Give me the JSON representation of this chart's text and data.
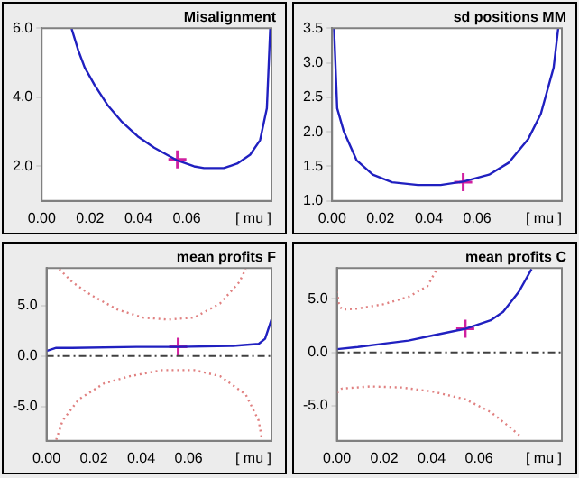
{
  "chart_data": [
    {
      "type": "line",
      "title": "Misalignment",
      "xlabel": "[ mu ]",
      "xlim": [
        0,
        0.095
      ],
      "xticks": [
        {
          "value": 0,
          "label": "0.00"
        },
        {
          "value": 0.02,
          "label": "0.02"
        },
        {
          "value": 0.04,
          "label": "0.04"
        },
        {
          "value": 0.06,
          "label": "0.06"
        }
      ],
      "ylim": [
        1,
        6
      ],
      "yticks": [
        {
          "value": 2,
          "label": "2.0"
        },
        {
          "value": 4,
          "label": "4.0"
        },
        {
          "value": 6,
          "label": "6.0"
        }
      ],
      "series": [
        {
          "color": "#2020c0",
          "x": [
            0.0123,
            0.0151,
            0.0178,
            0.0219,
            0.0274,
            0.0329,
            0.0397,
            0.0465,
            0.0561,
            0.063,
            0.0671,
            0.0753,
            0.0808,
            0.0862,
            0.0903,
            0.0931,
            0.0945
          ],
          "values": [
            6.0,
            5.36,
            4.86,
            4.35,
            3.76,
            3.31,
            2.87,
            2.54,
            2.17,
            2.0,
            1.95,
            1.95,
            2.08,
            2.34,
            2.76,
            3.68,
            6.0
          ]
        },
        {
          "type": "scatter",
          "marker": "cross",
          "color": "#d020a0",
          "x": [
            0.0561
          ],
          "values": [
            2.2
          ]
        }
      ]
    },
    {
      "type": "line",
      "title": "sd positions MM",
      "xlabel": "[ mu ]",
      "xlim": [
        0,
        0.095
      ],
      "xticks": [
        {
          "value": 0,
          "label": "0.00"
        },
        {
          "value": 0.02,
          "label": "0.02"
        },
        {
          "value": 0.04,
          "label": "0.04"
        },
        {
          "value": 0.06,
          "label": "0.06"
        }
      ],
      "ylim": [
        1,
        3.5
      ],
      "yticks": [
        {
          "value": 1,
          "label": "1.0"
        },
        1.5,
        {
          "value": 2,
          "label": "2.0"
        },
        2.5,
        {
          "value": 3,
          "label": "3.0"
        },
        3.5
      ],
      "series": [
        {
          "color": "#2020c0",
          "x": [
            0.0008,
            0.0021,
            0.0048,
            0.0101,
            0.0168,
            0.0248,
            0.0355,
            0.0449,
            0.0542,
            0.0649,
            0.0729,
            0.081,
            0.0863,
            0.0916,
            0.0935
          ],
          "values": [
            3.5,
            2.34,
            2.01,
            1.59,
            1.38,
            1.27,
            1.23,
            1.23,
            1.28,
            1.38,
            1.55,
            1.89,
            2.26,
            2.93,
            3.5
          ]
        },
        {
          "type": "scatter",
          "marker": "cross",
          "color": "#d020a0",
          "x": [
            0.0542
          ],
          "values": [
            1.27
          ]
        }
      ]
    },
    {
      "type": "line",
      "title": "mean profits F",
      "xlabel": "[ mu ]",
      "xlim": [
        0,
        0.095
      ],
      "xticks": [
        {
          "value": 0,
          "label": "0.00"
        },
        {
          "value": 0.02,
          "label": "0.02"
        },
        {
          "value": 0.04,
          "label": "0.04"
        },
        {
          "value": 0.06,
          "label": "0.06"
        }
      ],
      "ylim": [
        -8.4,
        8.7
      ],
      "yticks": [
        {
          "value": -5,
          "label": "-5.0"
        },
        {
          "value": 0,
          "label": "0.0"
        },
        {
          "value": 5,
          "label": "5.0"
        }
      ],
      "ref_lines": [
        {
          "axis": "y",
          "value": 0,
          "color": "#404040",
          "line_style": "dashed"
        }
      ],
      "series": [
        {
          "color": "#2020c0",
          "x": [
            0,
            0.0041,
            0.0109,
            0.038,
            0.0556,
            0.0787,
            0.0896,
            0.0923,
            0.095
          ],
          "values": [
            0.5,
            0.8,
            0.8,
            0.9,
            0.9,
            1.0,
            1.2,
            1.7,
            3.6
          ]
        },
        {
          "color": "#e08080",
          "line_style": "dotted",
          "x": [
            0.0054,
            0.0109,
            0.019,
            0.0299,
            0.0407,
            0.0514,
            0.0624,
            0.0733,
            0.0814,
            0.0841
          ],
          "values": [
            8.6,
            7.3,
            6.0,
            4.6,
            3.8,
            3.6,
            3.8,
            5.2,
            7.3,
            8.6
          ]
        },
        {
          "color": "#e08080",
          "line_style": "dotted",
          "x": [
            0.0041,
            0.0068,
            0.0136,
            0.0244,
            0.0353,
            0.0489,
            0.0624,
            0.0733,
            0.0841,
            0.0896,
            0.091
          ],
          "values": [
            -8.3,
            -6.4,
            -4.3,
            -2.7,
            -2.0,
            -1.4,
            -1.4,
            -2.0,
            -3.8,
            -6.4,
            -8.3
          ]
        },
        {
          "type": "scatter",
          "marker": "cross",
          "color": "#d020a0",
          "x": [
            0.0556
          ],
          "values": [
            0.9
          ]
        }
      ]
    },
    {
      "type": "line",
      "title": "mean profits C",
      "xlabel": "[ mu ]",
      "xlim": [
        0,
        0.095
      ],
      "xticks": [
        {
          "value": 0,
          "label": "0.00"
        },
        {
          "value": 0.02,
          "label": "0.02"
        },
        {
          "value": 0.04,
          "label": "0.04"
        },
        {
          "value": 0.06,
          "label": "0.06"
        }
      ],
      "ylim": [
        -8.3,
        7.9
      ],
      "yticks": [
        {
          "value": -5,
          "label": "-5.0"
        },
        {
          "value": 0,
          "label": "0.0"
        },
        {
          "value": 5,
          "label": "5.0"
        }
      ],
      "ref_lines": [
        {
          "axis": "y",
          "value": 0,
          "color": "#404040",
          "line_style": "dashed"
        }
      ],
      "series": [
        {
          "color": "#2020c0",
          "x": [
            0,
            0.0088,
            0.0195,
            0.0302,
            0.0408,
            0.0542,
            0.0649,
            0.0702,
            0.0769,
            0.0822
          ],
          "values": [
            0.3,
            0.5,
            0.8,
            1.1,
            1.6,
            2.2,
            3.0,
            3.8,
            5.7,
            7.8
          ]
        },
        {
          "color": "#e08080",
          "line_style": "dotted",
          "x": [
            0,
            0.0008,
            0.0021,
            0.0088,
            0.0195,
            0.0302,
            0.0382,
            0.0422
          ],
          "values": [
            5.7,
            4.6,
            4.0,
            4.1,
            4.5,
            5.2,
            6.2,
            7.8
          ]
        },
        {
          "color": "#e08080",
          "line_style": "dotted",
          "x": [
            0,
            0.0021,
            0.0141,
            0.0275,
            0.0408,
            0.0542,
            0.0649,
            0.0729,
            0.0782
          ],
          "values": [
            -3.8,
            -3.4,
            -3.2,
            -3.3,
            -3.7,
            -4.4,
            -5.6,
            -7.0,
            -8.0
          ]
        },
        {
          "type": "scatter",
          "marker": "cross",
          "color": "#d020a0",
          "x": [
            0.0542
          ],
          "values": [
            2.2
          ]
        }
      ]
    }
  ]
}
